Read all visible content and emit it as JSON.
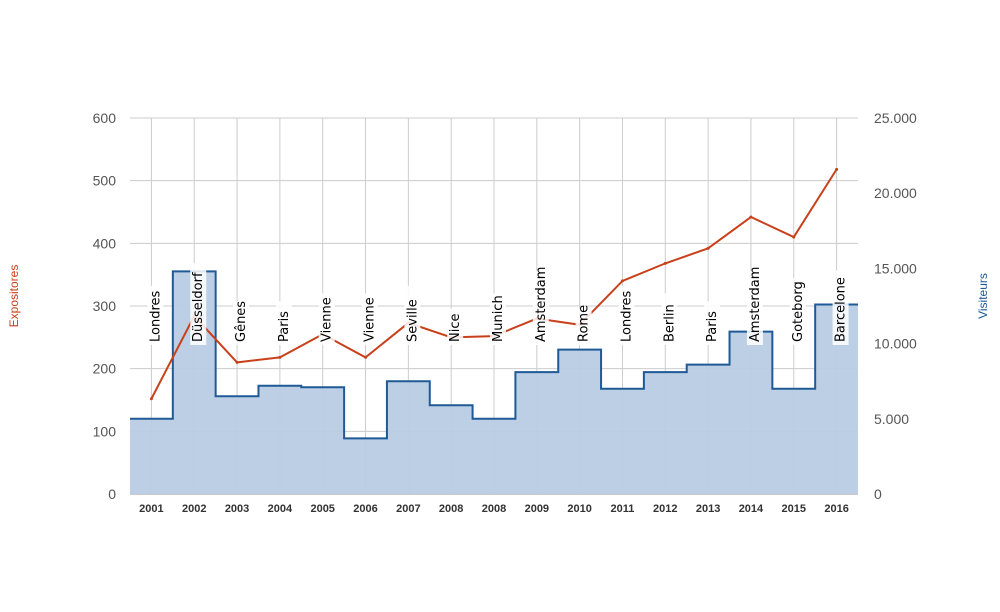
{
  "chart_data": {
    "type": "combo-step-area-line",
    "x_labels": [
      "2001",
      "2002",
      "2003",
      "2004",
      "2005",
      "2006",
      "2007",
      "2008",
      "2008",
      "2009",
      "2010",
      "2011",
      "2012",
      "2013",
      "2014",
      "2015",
      "2016"
    ],
    "cities": [
      "Londres",
      "Düsseldorf",
      "Gênes",
      "Paris",
      "Vienne",
      "Vienne",
      "Seville",
      "Nice",
      "Munich",
      "Amsterdam",
      "Rome",
      "Londres",
      "Berlin",
      "Paris",
      "Amsterdam",
      "Goteborg",
      "Barcelone"
    ],
    "series": [
      {
        "name": "Expositores",
        "kind": "line",
        "axis": "left",
        "color": "#c8411b",
        "values": [
          152,
          284,
          210,
          218,
          255,
          218,
          273,
          250,
          252,
          280,
          270,
          340,
          368,
          392,
          442,
          410,
          518
        ]
      },
      {
        "name": "Visiteurs",
        "kind": "step-area",
        "axis": "right",
        "color": "#1f5a96",
        "fill": "#b8cce4",
        "values": [
          5000,
          14800,
          6500,
          7200,
          7100,
          3700,
          7500,
          5900,
          5000,
          8100,
          9600,
          7000,
          8100,
          8600,
          10800,
          7000,
          12600
        ]
      }
    ],
    "y_left": {
      "label": "Expositores",
      "ticks": [
        "0",
        "100",
        "200",
        "300",
        "400",
        "500",
        "600"
      ],
      "range": [
        0,
        600
      ]
    },
    "y_right": {
      "label": "Visiteurs",
      "ticks": [
        "0",
        "5.000",
        "10.000",
        "15.000",
        "20.000",
        "25.000"
      ],
      "range": [
        0,
        25000
      ]
    },
    "grid": true
  }
}
